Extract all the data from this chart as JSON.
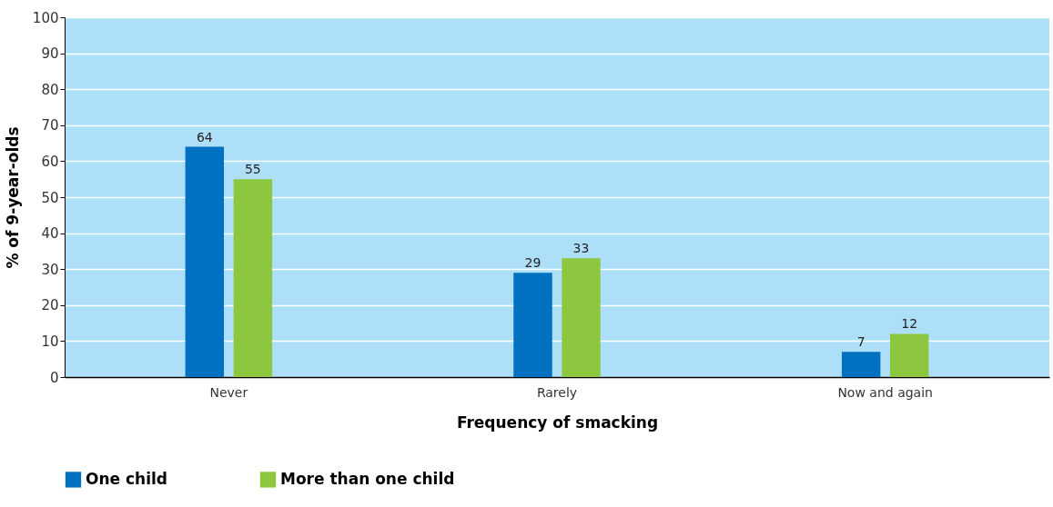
{
  "chart_data": {
    "type": "bar",
    "xlabel": "Frequency of smacking",
    "ylabel": "% of 9-year-olds",
    "categories": [
      "Never",
      "Rarely",
      "Now and again"
    ],
    "series": [
      {
        "name": "One child",
        "color": "#0070c0",
        "values": [
          64,
          29,
          7
        ]
      },
      {
        "name": "More than one child",
        "color": "#8dc63f",
        "values": [
          55,
          33,
          12
        ]
      }
    ],
    "ylim": [
      0,
      100
    ],
    "yticks": [
      0,
      10,
      20,
      30,
      40,
      50,
      60,
      70,
      80,
      90,
      100
    ],
    "grid": "y",
    "legend": "bottom left",
    "data_labels": true
  }
}
